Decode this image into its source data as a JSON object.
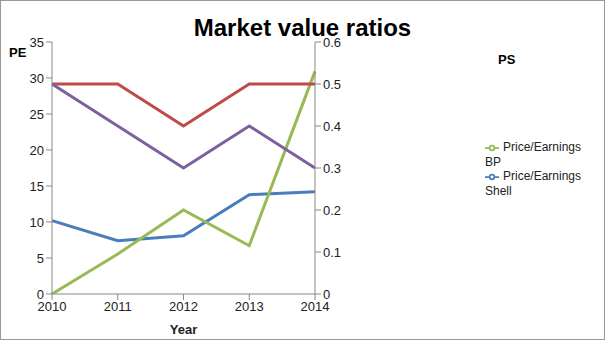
{
  "chart_data": {
    "type": "line",
    "title": "Market value ratios",
    "x_label": "Year",
    "y_label": "PE",
    "y2_label": "PS",
    "categories": [
      "2010",
      "2011",
      "2012",
      "2013",
      "2014"
    ],
    "series": [
      {
        "name": "Price/Earnings Shell",
        "color": "#4a7ebb",
        "axis": "y",
        "values": [
          10.2,
          7.4,
          8.1,
          13.8,
          14.2
        ]
      },
      {
        "name": "Price/Earnings BP",
        "color": "#98b954",
        "axis": "y2",
        "values": [
          0.0,
          0.095,
          0.2,
          0.115,
          0.53
        ]
      },
      {
        "color": "#be4b48",
        "axis": "y2",
        "values": [
          0.5,
          0.5,
          0.4,
          0.5,
          0.5
        ]
      },
      {
        "color": "#7d60a0",
        "axis": "y2",
        "values": [
          0.5,
          0.4,
          0.3,
          0.4,
          0.3
        ]
      }
    ],
    "ylim": [
      0,
      35
    ],
    "yticks": [
      0,
      5,
      10,
      15,
      20,
      25,
      30,
      35
    ],
    "y2lim": [
      0,
      0.6
    ],
    "y2ticks": [
      0,
      0.1,
      0.2,
      0.3,
      0.4,
      0.5,
      0.6
    ],
    "grid": false,
    "legend": "right"
  }
}
